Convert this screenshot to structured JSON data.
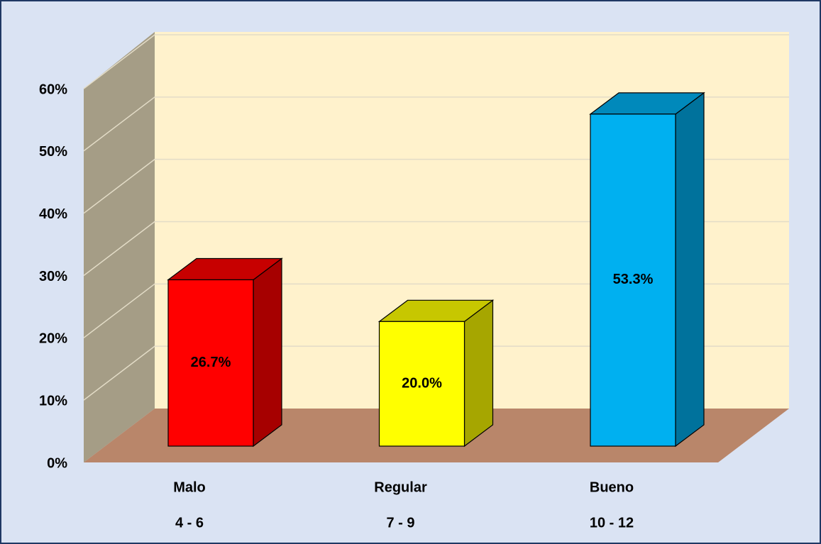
{
  "chart_data": {
    "type": "bar3d",
    "categories": [
      "Malo",
      "Regular",
      "Bueno"
    ],
    "ranges": [
      "4 - 6",
      "7 - 9",
      "10 - 12"
    ],
    "values": [
      26.7,
      20.0,
      53.3
    ],
    "value_labels": [
      "26.7%",
      "20.0%",
      "53.3%"
    ],
    "colors": [
      "#ff0000",
      "#ffff00",
      "#00b0f0"
    ],
    "ylim": [
      0,
      60
    ],
    "yticks": [
      {
        "value": 0,
        "label": "0%"
      },
      {
        "value": 10,
        "label": "10%"
      },
      {
        "value": 20,
        "label": "20%"
      },
      {
        "value": 30,
        "label": "30%"
      },
      {
        "value": 40,
        "label": "40%"
      },
      {
        "value": 50,
        "label": "50%"
      },
      {
        "value": 60,
        "label": "60%"
      }
    ],
    "grid": true
  }
}
